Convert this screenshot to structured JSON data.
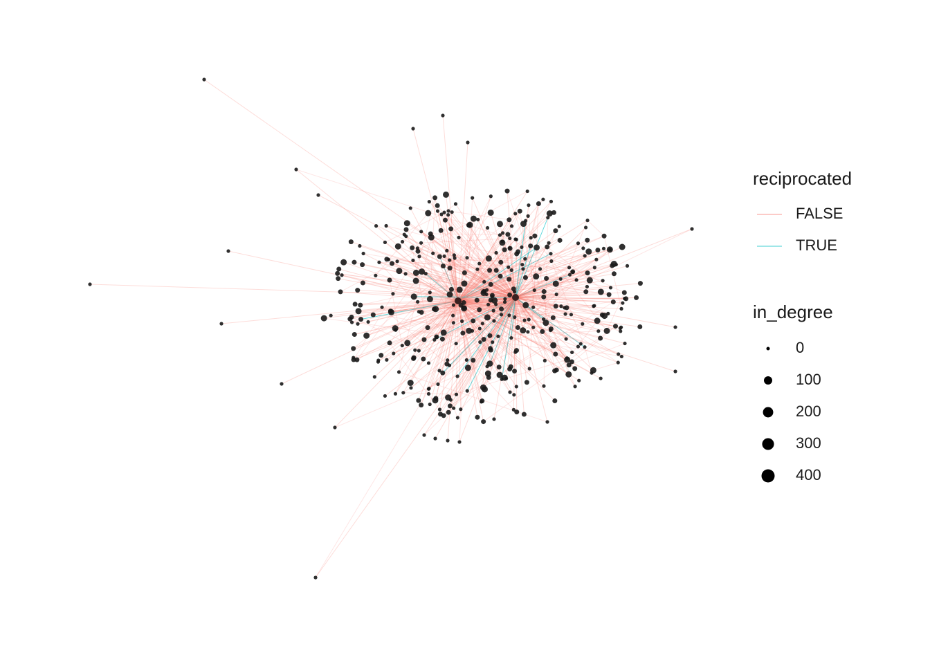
{
  "chart_data": {
    "type": "network",
    "legends": [
      {
        "title": "reciprocated",
        "entries": [
          {
            "label": "FALSE",
            "color": "#F8766D"
          },
          {
            "label": "TRUE",
            "color": "#00BFC4"
          }
        ]
      },
      {
        "title": "in_degree",
        "breaks": [
          0,
          100,
          200,
          300,
          400
        ]
      }
    ]
  }
}
